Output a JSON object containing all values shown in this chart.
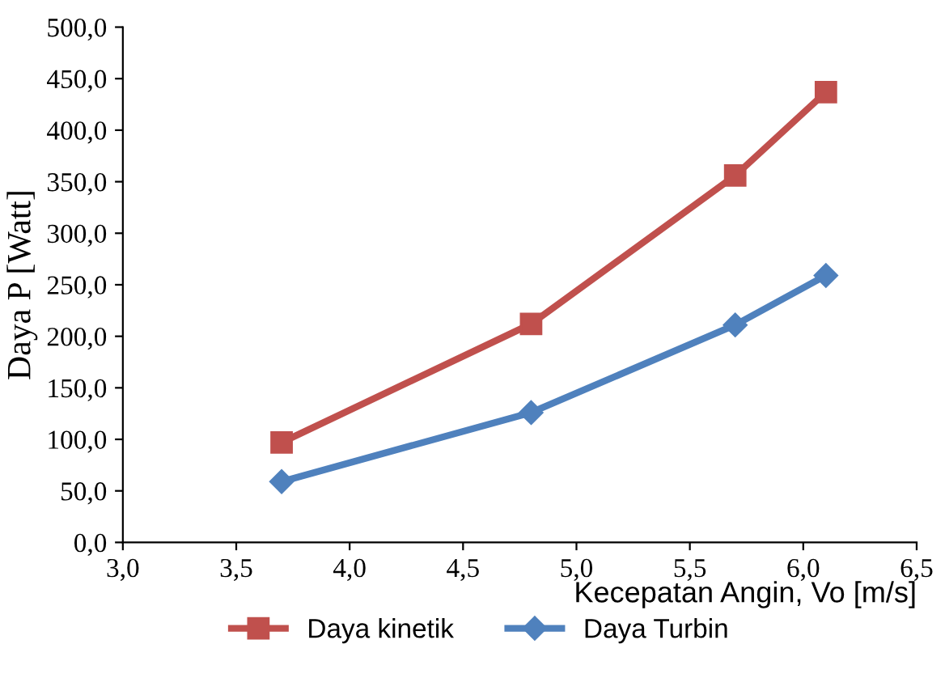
{
  "chart_data": {
    "type": "line",
    "xlabel": "Kecepatan Angin, Vo [m/s]",
    "ylabel": "Daya P [Watt]",
    "x": [
      3.7,
      4.8,
      5.7,
      6.1
    ],
    "series": [
      {
        "name": "Daya kinetik",
        "color": "#c0504d",
        "marker": "square",
        "values": [
          97,
          212,
          356,
          437
        ]
      },
      {
        "name": "Daya Turbin",
        "color": "#4f81bd",
        "marker": "diamond",
        "values": [
          59,
          126,
          211,
          259
        ]
      }
    ],
    "xlim": [
      3.0,
      6.5
    ],
    "xticks": [
      {
        "value": 3.0,
        "label": "3,0"
      },
      {
        "value": 3.5,
        "label": "3,5"
      },
      {
        "value": 4.0,
        "label": "4,0"
      },
      {
        "value": 4.5,
        "label": "4,5"
      },
      {
        "value": 5.0,
        "label": "5,0"
      },
      {
        "value": 5.5,
        "label": "5,5"
      },
      {
        "value": 6.0,
        "label": "6,0"
      },
      {
        "value": 6.5,
        "label": "6,5"
      }
    ],
    "ylim": [
      0,
      500
    ],
    "yticks": [
      {
        "value": 0,
        "label": "0,0"
      },
      {
        "value": 50,
        "label": "50,0"
      },
      {
        "value": 100,
        "label": "100,0"
      },
      {
        "value": 150,
        "label": "150,0"
      },
      {
        "value": 200,
        "label": "200,0"
      },
      {
        "value": 250,
        "label": "250,0"
      },
      {
        "value": 300,
        "label": "300,0"
      },
      {
        "value": 350,
        "label": "350,0"
      },
      {
        "value": 400,
        "label": "400,0"
      },
      {
        "value": 450,
        "label": "450,0"
      },
      {
        "value": 500,
        "label": "500,0"
      }
    ],
    "grid": false,
    "legend": "bottom",
    "line_style": "solid"
  }
}
